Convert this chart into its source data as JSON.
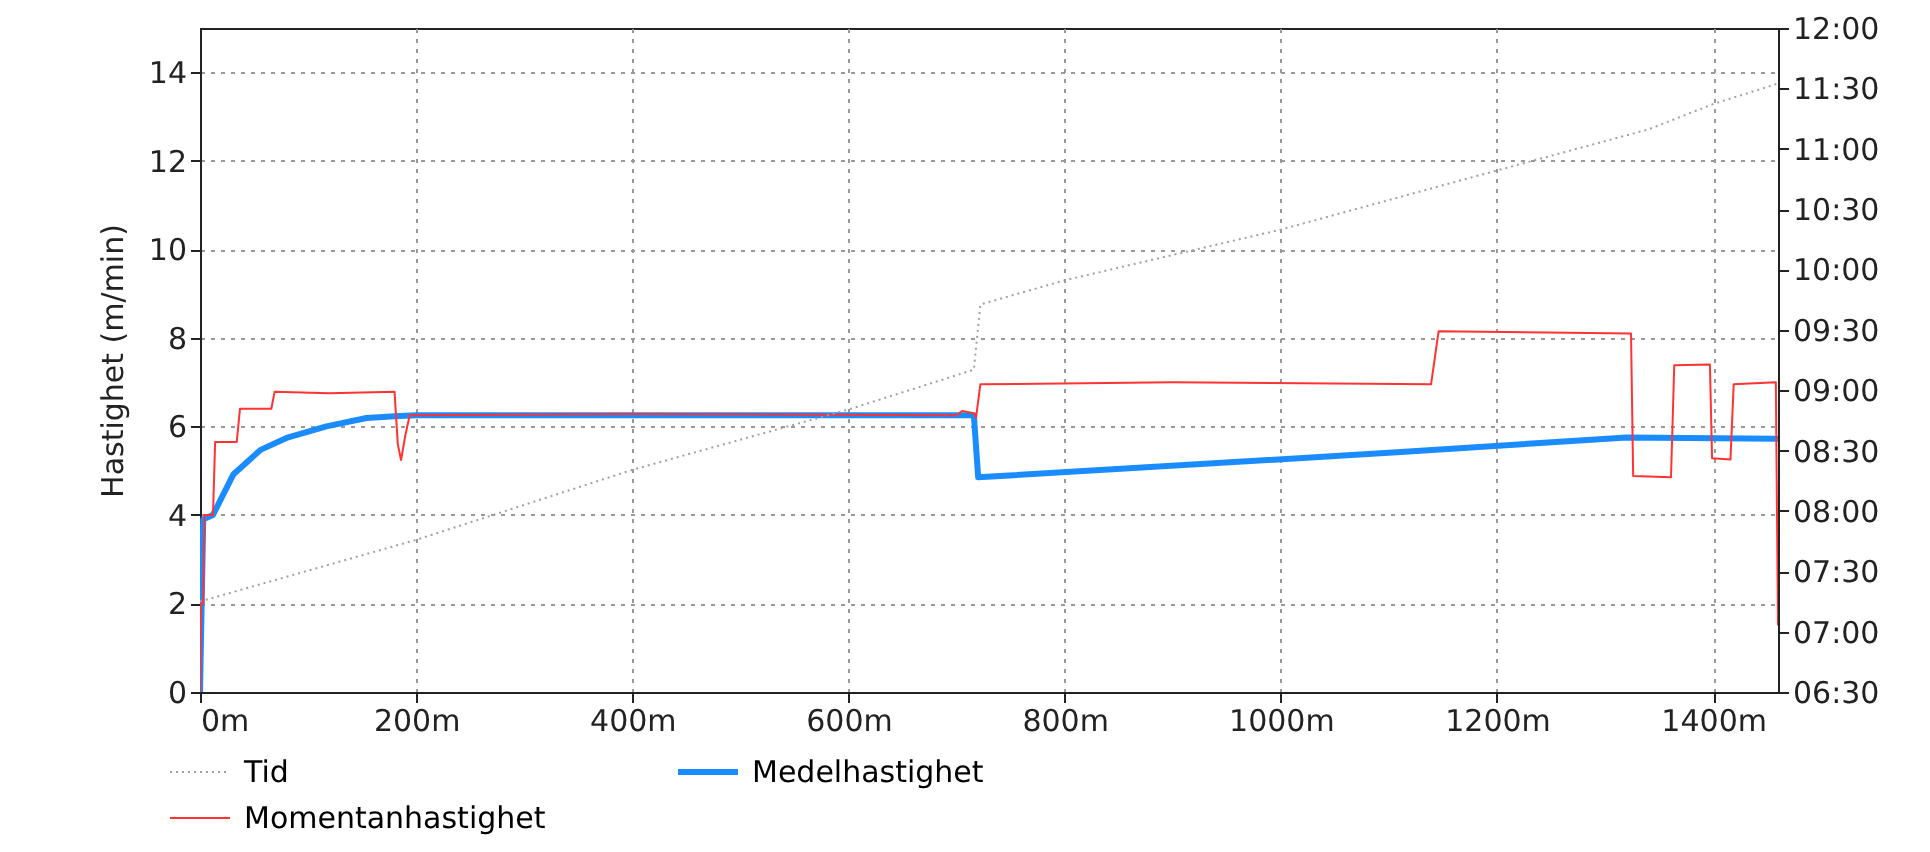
{
  "chart_data": {
    "type": "line",
    "ylabel": "Hastighet (m/min)",
    "xlim": [
      0,
      1460
    ],
    "ylim": [
      0,
      15
    ],
    "y2lim": [
      6.5,
      12
    ],
    "xticks": [
      {
        "value": 0,
        "label": "0m"
      },
      {
        "value": 200,
        "label": "200m"
      },
      {
        "value": 400,
        "label": "400m"
      },
      {
        "value": 600,
        "label": "600m"
      },
      {
        "value": 800,
        "label": "800m"
      },
      {
        "value": 1000,
        "label": "1000m"
      },
      {
        "value": 1200,
        "label": "1200m"
      },
      {
        "value": 1400,
        "label": "1400m"
      }
    ],
    "yticks": [
      0,
      2,
      4,
      6,
      8,
      10,
      12,
      14
    ],
    "y2ticks": [
      {
        "value": 6.5,
        "label": "06:30"
      },
      {
        "value": 7,
        "label": "07:00"
      },
      {
        "value": 7.5,
        "label": "07:30"
      },
      {
        "value": 8,
        "label": "08:00"
      },
      {
        "value": 8.5,
        "label": "08:30"
      },
      {
        "value": 9,
        "label": "09:00"
      },
      {
        "value": 9.5,
        "label": "09:30"
      },
      {
        "value": 10,
        "label": "10:00"
      },
      {
        "value": 10.5,
        "label": "10:30"
      },
      {
        "value": 11,
        "label": "11:00"
      },
      {
        "value": 11.5,
        "label": "11:30"
      },
      {
        "value": 12,
        "label": "12:00"
      }
    ],
    "grid": true,
    "legend": "bottom",
    "series": [
      {
        "name": "Tid",
        "color": "#a0a0a0",
        "axis": "y2",
        "line_style": "dotted",
        "x": [
          0,
          200,
          400,
          600,
          716,
          722,
          800,
          1000,
          1200,
          1340,
          1400,
          1460
        ],
        "values": [
          7.25,
          7.76,
          8.34,
          8.84,
          9.17,
          9.71,
          9.91,
          10.33,
          10.82,
          11.16,
          11.37,
          11.54
        ]
      },
      {
        "name": "Medelhastighet",
        "color": "#1a8cff",
        "line_style": "solid",
        "x": [
          0,
          3,
          12,
          19,
          31,
          56,
          80,
          117,
          154,
          180,
          200,
          716,
          720,
          1111,
          1320,
          1460
        ],
        "values": [
          0,
          3.9,
          4.0,
          4.34,
          4.92,
          5.47,
          5.74,
          6.0,
          6.19,
          6.23,
          6.25,
          6.25,
          4.85,
          5.42,
          5.75,
          5.72
        ]
      },
      {
        "name": "Momentanhastighet",
        "color": "#ff3333",
        "line_style": "solid",
        "x": [
          0,
          1,
          3,
          4,
          12,
          14,
          34,
          37,
          66,
          69,
          120,
          180,
          183,
          186,
          190,
          194,
          400,
          700,
          705,
          716,
          718,
          722,
          900,
          1139,
          1146,
          1324,
          1326,
          1361,
          1364,
          1397,
          1399,
          1416,
          1419,
          1458,
          1460
        ],
        "values": [
          0,
          2.0,
          2.0,
          4.0,
          4.0,
          5.65,
          5.65,
          6.4,
          6.4,
          6.78,
          6.75,
          6.78,
          5.6,
          5.24,
          5.8,
          6.25,
          6.28,
          6.25,
          6.35,
          6.3,
          6.2,
          6.95,
          7.0,
          6.95,
          8.15,
          8.1,
          4.88,
          4.85,
          7.38,
          7.4,
          5.28,
          5.25,
          6.95,
          7.0,
          1.5
        ]
      }
    ]
  }
}
